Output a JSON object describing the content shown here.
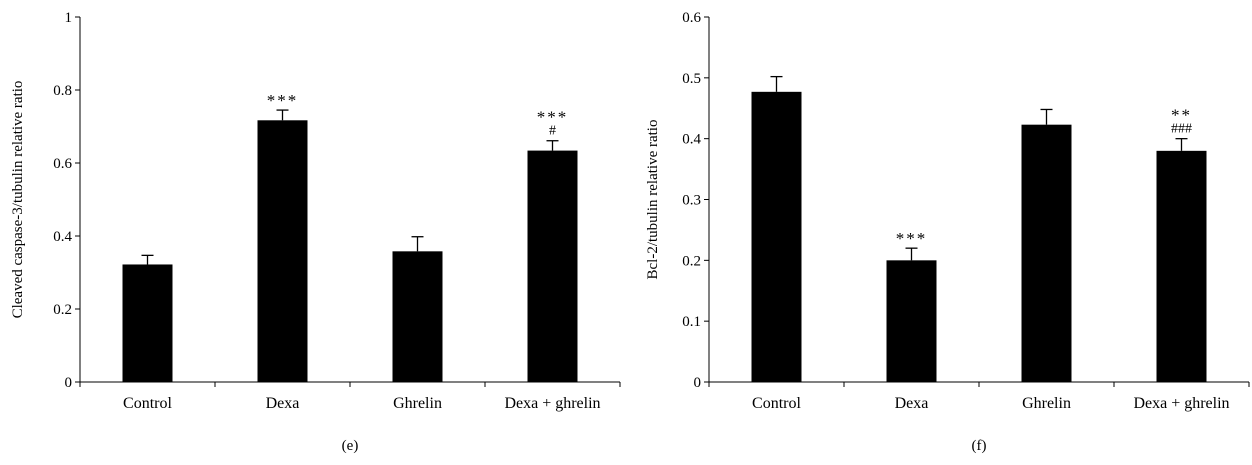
{
  "chart_data": [
    {
      "type": "bar",
      "panel_label": "(e)",
      "ylabel": "Cleaved caspase-3/tubulin relative ratio",
      "xlabel": "",
      "categories": [
        "Control",
        "Dexa",
        "Ghrelin",
        "Dexa + ghrelin"
      ],
      "values": [
        0.322,
        0.717,
        0.358,
        0.634
      ],
      "errors": [
        0.025,
        0.028,
        0.04,
        0.027
      ],
      "annotations": [
        {
          "top": "",
          "bottom": ""
        },
        {
          "top": "***",
          "bottom": ""
        },
        {
          "top": "",
          "bottom": ""
        },
        {
          "top": "***",
          "bottom": "#"
        }
      ],
      "ylim": [
        0,
        1
      ],
      "yticks": [
        0,
        0.2,
        0.4,
        0.6,
        0.8,
        1
      ],
      "ytick_labels": [
        "0",
        "0.2",
        "0.4",
        "0.6",
        "0.8",
        "1"
      ],
      "bar_color": "#000000",
      "grid": false,
      "legend": "none"
    },
    {
      "type": "bar",
      "panel_label": "(f)",
      "ylabel": "Bcl-2/tubulin relative ratio",
      "xlabel": "",
      "categories": [
        "Control",
        "Dexa",
        "Ghrelin",
        "Dexa + ghrelin"
      ],
      "values": [
        0.477,
        0.2,
        0.423,
        0.38
      ],
      "errors": [
        0.025,
        0.02,
        0.025,
        0.02
      ],
      "annotations": [
        {
          "top": "",
          "bottom": ""
        },
        {
          "top": "***",
          "bottom": ""
        },
        {
          "top": "",
          "bottom": ""
        },
        {
          "top": "**",
          "bottom": "###"
        }
      ],
      "ylim": [
        0,
        0.6
      ],
      "yticks": [
        0,
        0.1,
        0.2,
        0.3,
        0.4,
        0.5,
        0.6
      ],
      "ytick_labels": [
        "0",
        "0.1",
        "0.2",
        "0.3",
        "0.4",
        "0.5",
        "0.6"
      ],
      "bar_color": "#000000",
      "grid": false,
      "legend": "none"
    }
  ]
}
